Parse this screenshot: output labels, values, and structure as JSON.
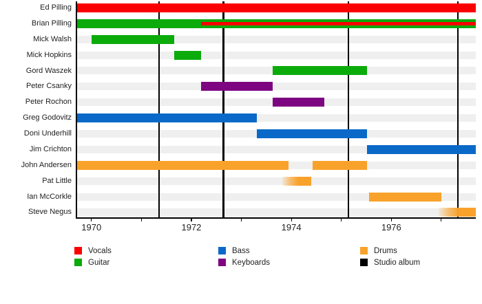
{
  "chart_data": {
    "type": "bar",
    "subtype": "band-member-timeline",
    "title": "",
    "xlabel": "",
    "ylabel": "",
    "grid": false,
    "legend_position": "bottom",
    "axis": {
      "min": 1969.7,
      "max": 1977.69,
      "ticks": [
        1970,
        1971,
        1972,
        1973,
        1974,
        1975,
        1976,
        1977
      ],
      "labeled_ticks": [
        1970,
        1972,
        1974,
        1976
      ],
      "tick_labels": [
        "1970",
        "1972",
        "1974",
        "1976"
      ]
    },
    "album_lines": [
      1971.35,
      1972.64,
      1975.14,
      1977.33
    ],
    "colors": {
      "Vocals": "#FA0000",
      "Guitar": "#0BAB0B",
      "Bass": "#0A69C8",
      "Keyboards": "#7D0581",
      "Drums": "#F9A22B",
      "Studio album": "#000000"
    },
    "band_color": "#EFEFEF",
    "rows": [
      {
        "name": "Ed Pilling",
        "bars": [
          {
            "role": "Vocals",
            "start": 1969.7,
            "end": 1977.69
          }
        ]
      },
      {
        "name": "Brian Pilling",
        "bars": [
          {
            "role": "Guitar",
            "start": 1969.7,
            "end": 1977.69
          },
          {
            "role": "Vocals",
            "start": 1972.19,
            "end": 1977.69,
            "overlay": true
          }
        ]
      },
      {
        "name": "Mick Walsh",
        "bars": [
          {
            "role": "Guitar",
            "start": 1970.0,
            "end": 1971.65
          }
        ]
      },
      {
        "name": "Mick Hopkins",
        "bars": [
          {
            "role": "Guitar",
            "start": 1971.65,
            "end": 1972.2
          }
        ]
      },
      {
        "name": "Gord Waszek",
        "bars": [
          {
            "role": "Guitar",
            "start": 1973.63,
            "end": 1975.52
          }
        ]
      },
      {
        "name": "Peter Csanky",
        "bars": [
          {
            "role": "Keyboards",
            "start": 1972.2,
            "end": 1973.63
          }
        ]
      },
      {
        "name": "Peter Rochon",
        "bars": [
          {
            "role": "Keyboards",
            "start": 1973.63,
            "end": 1974.66
          }
        ]
      },
      {
        "name": "Greg Godovitz",
        "bars": [
          {
            "role": "Bass",
            "start": 1969.7,
            "end": 1973.31
          }
        ]
      },
      {
        "name": "Doni Underhill",
        "bars": [
          {
            "role": "Bass",
            "start": 1973.31,
            "end": 1975.52
          }
        ]
      },
      {
        "name": "Jim Crichton",
        "bars": [
          {
            "role": "Bass",
            "start": 1975.52,
            "end": 1977.69
          }
        ]
      },
      {
        "name": "John Andersen",
        "bars": [
          {
            "role": "Drums",
            "start": 1969.7,
            "end": 1973.94
          },
          {
            "role": "Drums",
            "start": 1974.42,
            "end": 1975.52
          }
        ]
      },
      {
        "name": "Pat Little",
        "bars": [
          {
            "role": "Drums",
            "start": 1973.82,
            "end": 1974.4,
            "fade_left": true
          }
        ]
      },
      {
        "name": "Ian McCorkle",
        "bars": [
          {
            "role": "Drums",
            "start": 1975.55,
            "end": 1977.0
          }
        ]
      },
      {
        "name": "Steve Negus",
        "bars": [
          {
            "role": "Drums",
            "start": 1976.95,
            "end": 1977.69,
            "fade_left": true
          }
        ]
      }
    ],
    "legend": [
      "Vocals",
      "Guitar",
      "Bass",
      "Keyboards",
      "Drums",
      "Studio album"
    ]
  }
}
